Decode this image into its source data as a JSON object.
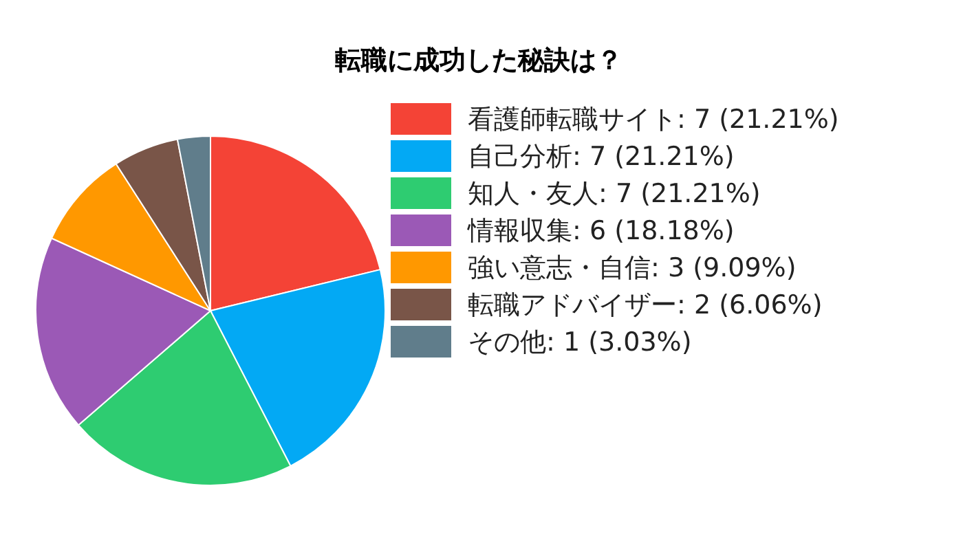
{
  "chart_data": {
    "type": "pie",
    "title": "転職に成功した秘訣は？",
    "categories": [
      "看護師転職サイト",
      "自己分析",
      "知人・友人",
      "情報収集",
      "強い意志・自信",
      "転職アドバイザー",
      "その他"
    ],
    "values": [
      7,
      7,
      7,
      6,
      3,
      2,
      1
    ],
    "value_labels": [
      "7 (21.21%)",
      "7 (21.21%)",
      "7 (21.21%)",
      "6 (18.18%)",
      "3 (9.09%)",
      "2 (6.06%)",
      "1 (3.03%)"
    ],
    "colors": [
      "#f44336",
      "#03a9f4",
      "#2ecc71",
      "#9b59b6",
      "#ff9800",
      "#795548",
      "#607d8b"
    ],
    "legend": "right"
  }
}
